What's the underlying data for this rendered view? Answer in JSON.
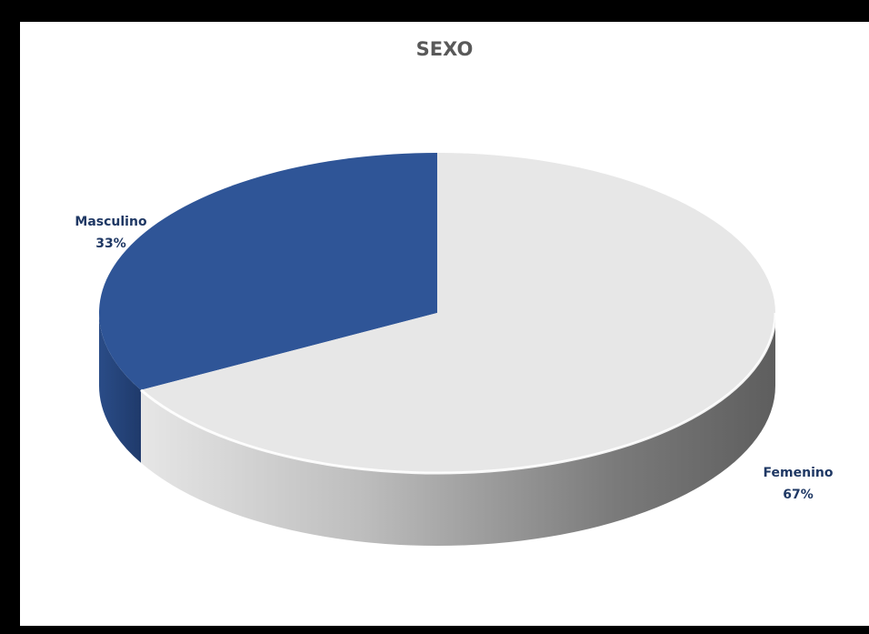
{
  "chart_data": {
    "type": "pie",
    "title": "SEXO",
    "categories": [
      "Masculino",
      "Femenino"
    ],
    "values": [
      33,
      67
    ],
    "value_labels": [
      "33%",
      "67%"
    ],
    "colors": [
      "#2F5597",
      "#E7E7E7"
    ],
    "legend": "none",
    "style": "3d"
  }
}
